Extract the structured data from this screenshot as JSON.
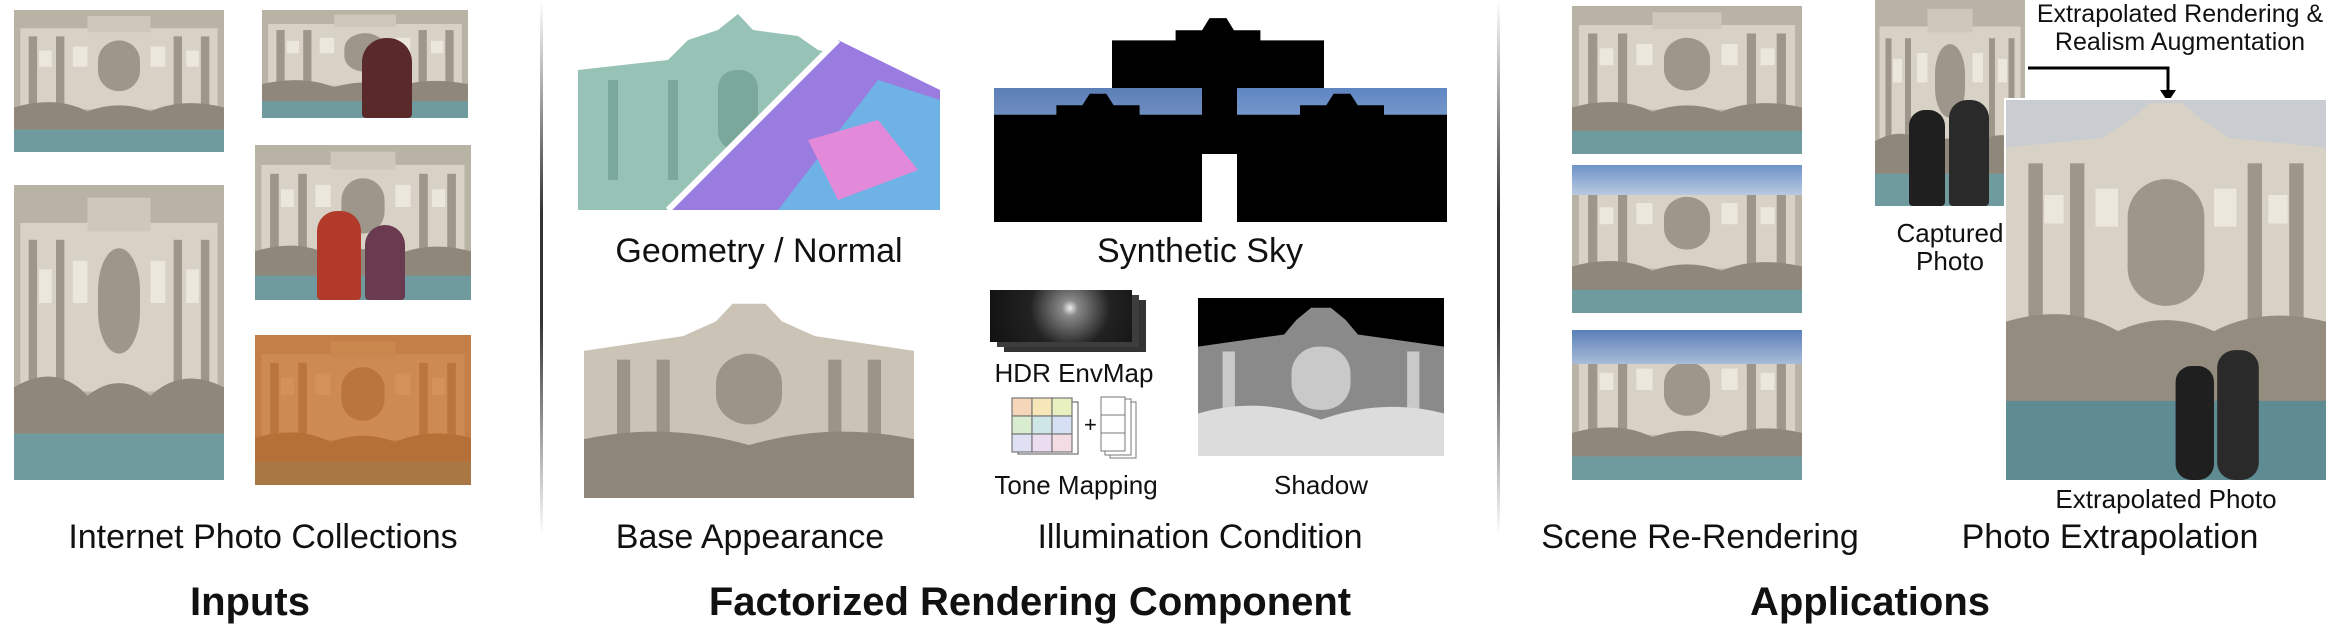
{
  "sections": {
    "inputs": {
      "title": "Inputs",
      "caption": "Internet Photo Collections"
    },
    "factorized": {
      "title": "Factorized Rendering Component",
      "geometry_label": "Geometry / Normal",
      "sky_label": "Synthetic Sky",
      "base_label": "Base Appearance",
      "illumination_label": "Illumination Condition",
      "hdr_label": "HDR EnvMap",
      "tone_label": "Tone Mapping",
      "shadow_label": "Shadow",
      "plus": "+"
    },
    "applications": {
      "title": "Applications",
      "rerender_label": "Scene Re-Rendering",
      "extrapolation_label": "Photo Extrapolation",
      "arrow_label_line1": "Extrapolated Rendering &",
      "arrow_label_line2": "Realism Augmentation",
      "captured_line1": "Captured",
      "captured_line2": "Photo",
      "extrapolated_label": "Extrapolated Photo"
    }
  },
  "colors": {
    "stone": "#cfc9bd",
    "sky": "#7fa1cf",
    "water": "#5f8f95",
    "normal_teal": "#8fbfb0",
    "warm": "#c06a1c"
  }
}
